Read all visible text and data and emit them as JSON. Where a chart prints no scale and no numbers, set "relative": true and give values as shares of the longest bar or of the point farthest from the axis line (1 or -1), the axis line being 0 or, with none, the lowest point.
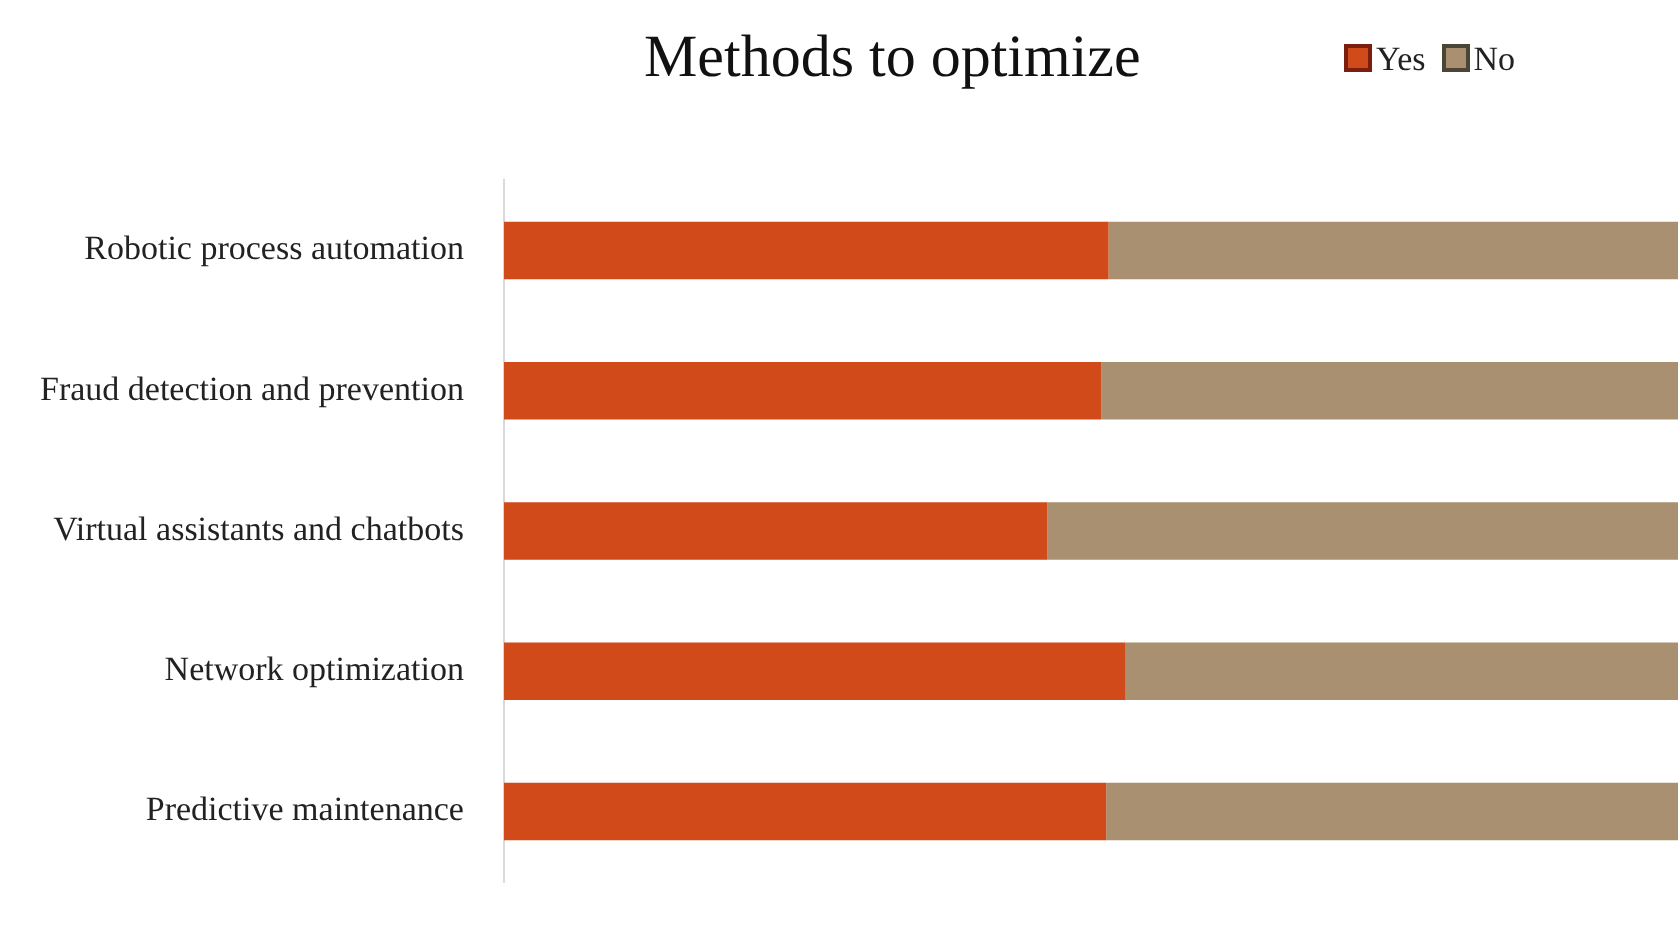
{
  "chart_data": {
    "type": "bar",
    "orientation": "horizontal",
    "stacked": true,
    "relative": true,
    "title": "Methods to optimize",
    "legend": "top",
    "categories": [
      "Robotic process automation",
      "Fraud detection and prevention",
      "Virtual assistants and chatbots",
      "Network optimization",
      "Predictive maintenance"
    ],
    "series": [
      {
        "name": "Yes",
        "color": "#d04a1a",
        "values": [
          0.515,
          0.509,
          0.463,
          0.529,
          0.513
        ]
      },
      {
        "name": "No",
        "color": "#a89070",
        "values": [
          0.485,
          0.491,
          0.537,
          0.471,
          0.487
        ]
      }
    ]
  }
}
